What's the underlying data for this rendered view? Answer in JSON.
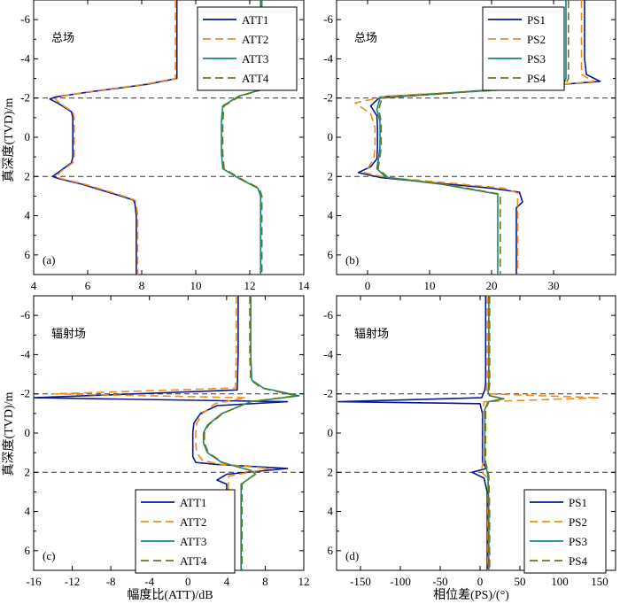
{
  "figure": {
    "ylabel": "真深度(TVD)/m",
    "xlabel_att": "幅度比(ATT)/dB",
    "xlabel_ps": "相位差(PS)/(°)"
  },
  "chart_data": [
    {
      "panel": "a",
      "type": "line",
      "panel_label": "(a)",
      "annotation": "总场",
      "xlim": [
        4,
        14
      ],
      "ylim": [
        -7,
        7
      ],
      "y_inverted": true,
      "xticks": [
        4,
        6,
        8,
        10,
        12,
        14
      ],
      "yticks": [
        -6,
        -4,
        -2,
        0,
        2,
        4,
        6
      ],
      "boundaries": [
        -2,
        2
      ],
      "legend_position": "top-right",
      "series": [
        {
          "name": "ATT1",
          "color": "#0a1a8c",
          "dash": "solid",
          "x": [
            9.3,
            9.3,
            9.3,
            9.3,
            8.2,
            6.0,
            4.8,
            4.6,
            4.95,
            5.4,
            5.45,
            5.45,
            5.45,
            5.4,
            4.95,
            4.7,
            4.9,
            5.8,
            7.0,
            7.7,
            7.75,
            7.8,
            7.8,
            7.8,
            7.8
          ],
          "y": [
            -7,
            -6,
            -4,
            -3,
            -2.7,
            -2.3,
            -2.05,
            -1.95,
            -1.7,
            -1.3,
            -1.0,
            0,
            1.0,
            1.3,
            1.75,
            2.0,
            2.1,
            2.4,
            2.9,
            3.2,
            3.4,
            4,
            5,
            6,
            7
          ]
        },
        {
          "name": "ATT2",
          "color": "#f28a1c",
          "dash": "dash",
          "x": [
            9.25,
            9.25,
            9.25,
            9.25,
            8.1,
            5.9,
            4.9,
            4.8,
            5.0,
            5.45,
            5.5,
            5.5,
            5.5,
            5.45,
            5.0,
            4.85,
            5.0,
            5.9,
            7.1,
            7.75,
            7.8,
            7.85,
            7.85,
            7.85,
            7.85
          ],
          "y": [
            -7,
            -6,
            -4,
            -3,
            -2.7,
            -2.3,
            -2.05,
            -1.95,
            -1.7,
            -1.3,
            -1.0,
            0,
            1.0,
            1.3,
            1.75,
            2.0,
            2.1,
            2.4,
            2.9,
            3.2,
            3.4,
            4,
            5,
            6,
            7
          ]
        },
        {
          "name": "ATT3",
          "color": "#16857e",
          "dash": "solid",
          "x": [
            12.4,
            12.4,
            12.4,
            12.35,
            11.6,
            11.0,
            10.95,
            10.95,
            10.95,
            11.0,
            11.6,
            12.3,
            12.4,
            12.4,
            12.4,
            12.4
          ],
          "y": [
            -7,
            -4,
            -2.8,
            -2.4,
            -2.1,
            -1.6,
            -0.8,
            0,
            0.8,
            1.6,
            2.1,
            2.6,
            3.0,
            4,
            5,
            7
          ]
        },
        {
          "name": "ATT4",
          "color": "#6b7a12",
          "dash": "dash",
          "x": [
            12.45,
            12.45,
            12.45,
            12.4,
            11.65,
            11.05,
            11.0,
            11.0,
            11.0,
            11.05,
            11.65,
            12.35,
            12.45,
            12.45,
            12.45,
            12.45
          ],
          "y": [
            -7,
            -4,
            -2.8,
            -2.4,
            -2.1,
            -1.6,
            -0.8,
            0,
            0.8,
            1.6,
            2.1,
            2.6,
            3.0,
            4,
            5,
            7
          ]
        }
      ]
    },
    {
      "panel": "b",
      "type": "line",
      "panel_label": "(b)",
      "annotation": "总场",
      "xlim": [
        -5,
        40
      ],
      "ylim": [
        -7,
        7
      ],
      "y_inverted": true,
      "xticks": [
        0,
        10,
        20,
        30
      ],
      "yticks": [
        -6,
        -4,
        -2,
        0,
        2,
        4,
        6
      ],
      "boundaries": [
        -2,
        2
      ],
      "legend_position": "top-right",
      "series": [
        {
          "name": "PS1",
          "color": "#0a1a8c",
          "dash": "solid",
          "x": [
            35,
            35,
            35,
            35.3,
            37.5,
            15,
            2,
            0.5,
            1.5,
            1.6,
            1.6,
            1.6,
            1.5,
            0.5,
            -1.5,
            2,
            10,
            20,
            24.5,
            25,
            24,
            24,
            24,
            24
          ],
          "y": [
            -7,
            -6,
            -4,
            -3.2,
            -2.85,
            -2.3,
            -2.05,
            -1.6,
            -1.1,
            -0.5,
            0,
            0.5,
            1.1,
            1.5,
            1.8,
            2.05,
            2.3,
            2.6,
            2.8,
            3.3,
            3.6,
            4,
            5,
            7
          ]
        },
        {
          "name": "PS2",
          "color": "#f28a1c",
          "dash": "dash",
          "x": [
            34.5,
            34.5,
            34.5,
            34.5,
            36.5,
            20,
            3,
            -2,
            0.5,
            1.2,
            1.2,
            1.2,
            1.0,
            0.2,
            -0.5,
            3,
            12,
            22,
            24.2,
            24.2,
            24.2,
            24.2
          ],
          "y": [
            -7,
            -6,
            -4,
            -3.2,
            -2.85,
            -2.4,
            -2.1,
            -1.75,
            -1.2,
            -0.5,
            0,
            0.5,
            1.1,
            1.5,
            1.8,
            2.05,
            2.3,
            2.6,
            2.85,
            4,
            5,
            7
          ]
        },
        {
          "name": "PS3",
          "color": "#16857e",
          "dash": "solid",
          "x": [
            32,
            32,
            32,
            32,
            31.5,
            15,
            2,
            1.5,
            2.0,
            2.0,
            2.0,
            2.0,
            1.8,
            1.5,
            3,
            12,
            21,
            21,
            21,
            21
          ],
          "y": [
            -7,
            -6,
            -4,
            -3,
            -2.6,
            -2.3,
            -2.0,
            -1.4,
            -0.8,
            -0.2,
            0,
            0.5,
            1.0,
            1.6,
            2.05,
            2.4,
            2.9,
            4,
            5,
            7
          ]
        },
        {
          "name": "PS4",
          "color": "#6b7a12",
          "dash": "dash",
          "x": [
            32.4,
            32.4,
            32.4,
            32.4,
            31.8,
            15.5,
            2.3,
            1.8,
            2.2,
            2.2,
            2.2,
            2.2,
            2.0,
            1.7,
            3.3,
            12.5,
            21.4,
            21.4,
            21.4,
            21.4
          ],
          "y": [
            -7,
            -6,
            -4,
            -3,
            -2.6,
            -2.3,
            -2.0,
            -1.4,
            -0.8,
            -0.2,
            0,
            0.5,
            1.0,
            1.6,
            2.05,
            2.4,
            2.9,
            4,
            5,
            7
          ]
        }
      ]
    },
    {
      "panel": "c",
      "type": "line",
      "panel_label": "(c)",
      "annotation": "辐射场",
      "xlim": [
        -16,
        12
      ],
      "ylim": [
        -7,
        7
      ],
      "y_inverted": true,
      "xticks": [
        -16,
        -12,
        -8,
        -4,
        0,
        4,
        8,
        12
      ],
      "yticks": [
        -6,
        -4,
        -2,
        0,
        2,
        4,
        6
      ],
      "boundaries": [
        -2,
        2
      ],
      "legend_position": "bottom-left",
      "series": [
        {
          "name": "ATT1",
          "color": "#0a1a8c",
          "dash": "solid",
          "x": [
            5.2,
            5.2,
            5.2,
            5.1,
            -16,
            10.3,
            3.0,
            1.3,
            0.6,
            0.5,
            0.5,
            0.5,
            0.8,
            3.0,
            10.3,
            4.0,
            3.0,
            4.0,
            4.0,
            4.0,
            4.0
          ],
          "y": [
            -7,
            -6,
            -4,
            -2.2,
            -1.8,
            -1.6,
            -1.4,
            -1.0,
            -0.5,
            0,
            0.5,
            1.2,
            1.5,
            1.6,
            1.8,
            2.1,
            2.4,
            2.6,
            4,
            5,
            7
          ]
        },
        {
          "name": "ATT2",
          "color": "#f28a1c",
          "dash": "dash",
          "x": [
            5.0,
            5.0,
            5.0,
            4.9,
            -14,
            6.0,
            2.8,
            1.5,
            0.9,
            0.8,
            0.8,
            0.9,
            1.5,
            3.5,
            8.5,
            4.2,
            4.2,
            4.2,
            4.2,
            4.2
          ],
          "y": [
            -7,
            -6,
            -4,
            -2.3,
            -2.0,
            -1.8,
            -1.5,
            -1.0,
            -0.5,
            0,
            0.5,
            1.0,
            1.4,
            1.6,
            1.8,
            2.2,
            2.6,
            4,
            5,
            7
          ]
        },
        {
          "name": "ATT3",
          "color": "#16857e",
          "dash": "solid",
          "x": [
            6.5,
            6.5,
            6.5,
            6.6,
            7.8,
            11.5,
            6.5,
            3.5,
            2.0,
            1.6,
            1.6,
            2.0,
            3.5,
            6.5,
            7.0,
            5.5,
            5.5,
            5.5,
            5.5
          ],
          "y": [
            -7,
            -6,
            -4,
            -2.7,
            -2.3,
            -1.9,
            -1.6,
            -1.0,
            -0.4,
            0,
            0.5,
            1.0,
            1.5,
            1.9,
            2.1,
            2.6,
            4,
            5,
            7
          ]
        },
        {
          "name": "ATT4",
          "color": "#6b7a12",
          "dash": "dash",
          "x": [
            6.4,
            6.4,
            6.4,
            6.5,
            7.6,
            11.2,
            6.4,
            3.6,
            2.1,
            1.7,
            1.7,
            2.1,
            3.6,
            6.4,
            6.9,
            5.6,
            5.6,
            5.6,
            5.6
          ],
          "y": [
            -7,
            -6,
            -4,
            -2.7,
            -2.3,
            -1.9,
            -1.6,
            -1.0,
            -0.4,
            0,
            0.5,
            1.0,
            1.5,
            1.9,
            2.1,
            2.6,
            4,
            5,
            7
          ]
        }
      ]
    },
    {
      "panel": "d",
      "type": "line",
      "panel_label": "(d)",
      "annotation": "辐射场",
      "xlim": [
        -180,
        170
      ],
      "ylim": [
        -7,
        7
      ],
      "y_inverted": true,
      "xticks": [
        -150,
        -100,
        -50,
        0,
        50,
        100,
        150
      ],
      "yticks": [
        -6,
        -4,
        -2,
        0,
        2,
        4,
        6
      ],
      "boundaries": [
        -2,
        2
      ],
      "legend_position": "bottom-right",
      "series": [
        {
          "name": "PS1",
          "color": "#0a1a8c",
          "dash": "solid",
          "x": [
            7,
            7,
            7,
            6,
            2,
            -178,
            0,
            3,
            3,
            3,
            3,
            8,
            -10,
            5,
            9,
            9,
            9
          ],
          "y": [
            -7,
            -4,
            -2.6,
            -2.2,
            -1.8,
            -1.6,
            -1.5,
            -1.0,
            0,
            0.5,
            1.5,
            1.8,
            2.0,
            2.3,
            3,
            5,
            7
          ]
        },
        {
          "name": "PS2",
          "color": "#f28a1c",
          "dash": "dash",
          "x": [
            9,
            9,
            9,
            8,
            10,
            150,
            5,
            4,
            4,
            4,
            4,
            2,
            2,
            10,
            10,
            10
          ],
          "y": [
            -7,
            -4,
            -2.6,
            -2.2,
            -2.0,
            -1.8,
            -1.6,
            -1.2,
            0,
            0.5,
            1.5,
            1.8,
            2.0,
            2.3,
            5,
            7
          ]
        },
        {
          "name": "PS3",
          "color": "#16857e",
          "dash": "solid",
          "x": [
            11,
            11,
            11,
            10,
            12,
            30,
            10,
            6,
            6,
            6,
            6,
            8,
            10,
            11,
            11
          ],
          "y": [
            -7,
            -4,
            -2.5,
            -2.1,
            -1.9,
            -1.75,
            -1.6,
            -1.2,
            0,
            0.5,
            1.5,
            1.8,
            2.2,
            4,
            7
          ]
        },
        {
          "name": "PS4",
          "color": "#6b7a12",
          "dash": "dash",
          "x": [
            12,
            12,
            12,
            11,
            13,
            28,
            11,
            7,
            7,
            7,
            7,
            9,
            11,
            12,
            12
          ],
          "y": [
            -7,
            -4,
            -2.5,
            -2.1,
            -1.9,
            -1.75,
            -1.6,
            -1.2,
            0,
            0.5,
            1.5,
            1.8,
            2.2,
            4,
            7
          ]
        }
      ]
    }
  ]
}
